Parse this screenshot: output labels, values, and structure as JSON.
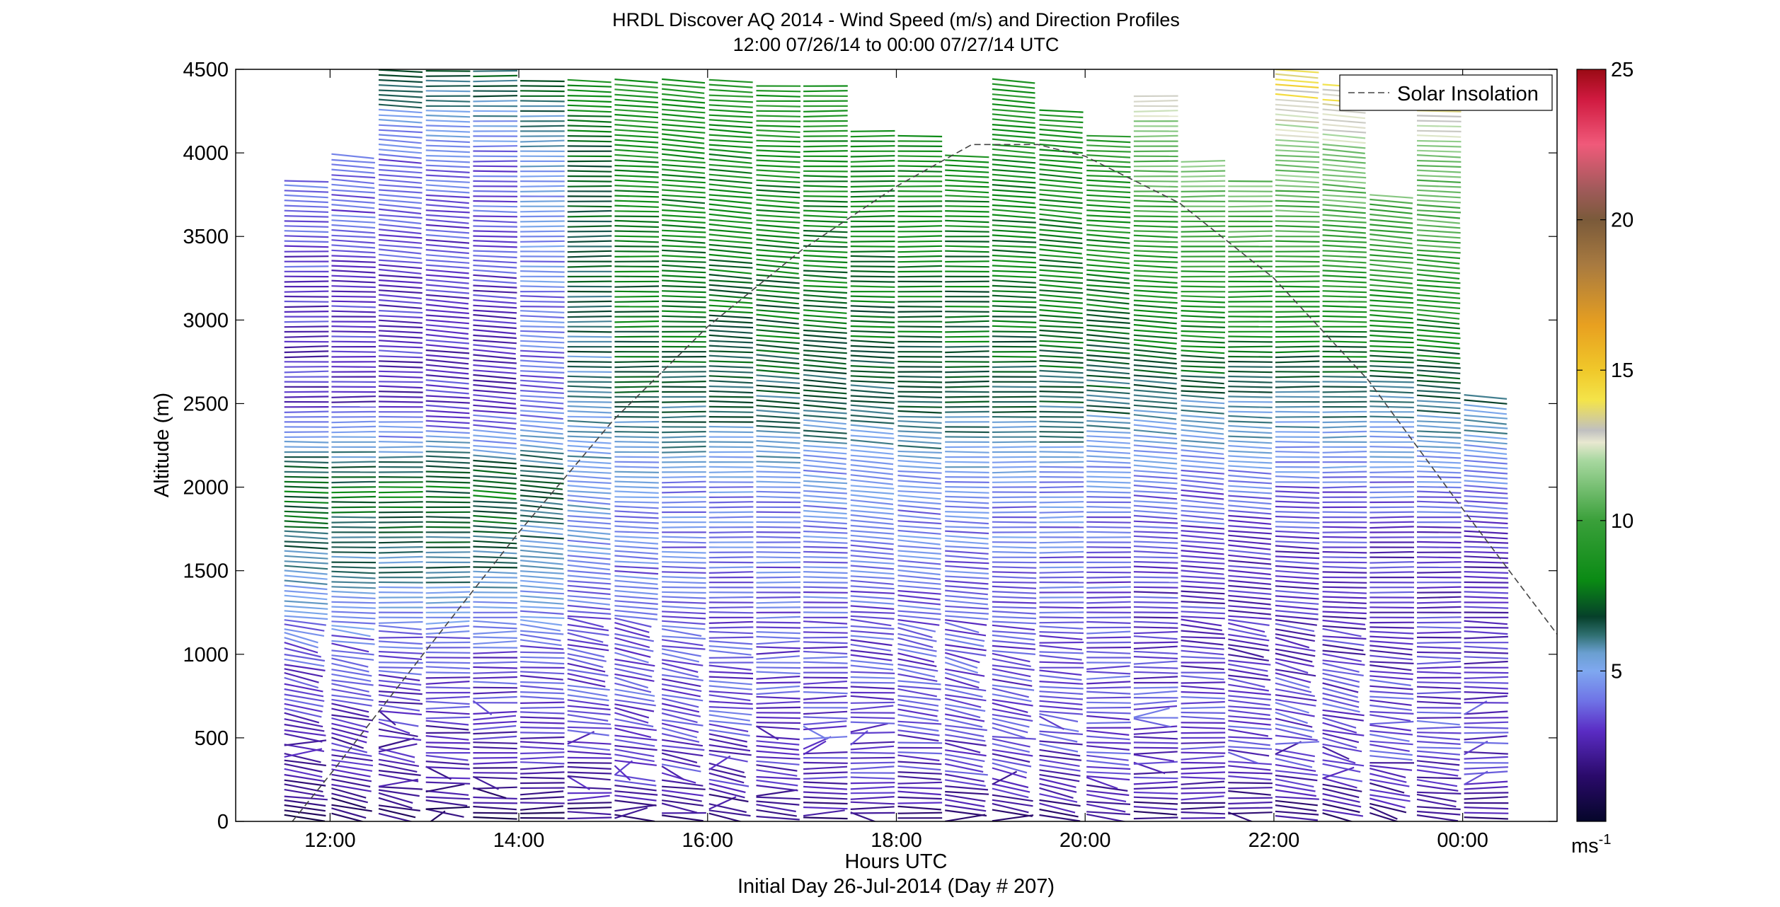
{
  "chart_data": {
    "type": "wind_barb_profile",
    "title": "HRDL Discover AQ 2014 - Wind Speed (m/s) and Direction Profiles",
    "subtitle": "12:00 07/26/14 to 00:00 07/27/14  UTC",
    "xlabel": "Hours UTC",
    "xlabel2": "Initial Day 26-Jul-2014 (Day # 207)",
    "ylabel": "Altitude (m)",
    "xlim": [
      11.0,
      25.0
    ],
    "ylim": [
      0,
      4500
    ],
    "x_ticks": [
      12,
      14,
      16,
      18,
      20,
      22,
      24
    ],
    "x_tick_labels": [
      "12:00",
      "14:00",
      "16:00",
      "18:00",
      "20:00",
      "22:00",
      "00:00"
    ],
    "y_ticks": [
      0,
      500,
      1000,
      1500,
      2000,
      2500,
      3000,
      3500,
      4000,
      4500
    ],
    "y_tick_labels": [
      "0",
      "500",
      "1000",
      "1500",
      "2000",
      "2500",
      "3000",
      "3500",
      "4000",
      "4500"
    ],
    "legend": {
      "position": "top-right",
      "entries": [
        "Solar Insolation"
      ]
    },
    "colorbar": {
      "range": [
        0,
        25
      ],
      "tick_values": [
        5,
        10,
        15,
        20,
        25
      ],
      "tick_labels": [
        "5",
        "10",
        "15",
        "20",
        "25"
      ],
      "unit_label": "ms",
      "unit_exponent": "-1",
      "stops": [
        {
          "v": 0,
          "c": "#05062a"
        },
        {
          "v": 1.5,
          "c": "#2a0a6a"
        },
        {
          "v": 3,
          "c": "#5a2cc4"
        },
        {
          "v": 4,
          "c": "#6f73e6"
        },
        {
          "v": 5,
          "c": "#7fa8f0"
        },
        {
          "v": 5.6,
          "c": "#6a9fd0"
        },
        {
          "v": 6.2,
          "c": "#2f6f70"
        },
        {
          "v": 6.8,
          "c": "#06402a"
        },
        {
          "v": 8,
          "c": "#0a8a14"
        },
        {
          "v": 10,
          "c": "#3aa03a"
        },
        {
          "v": 12,
          "c": "#a8d8a0"
        },
        {
          "v": 12.6,
          "c": "#e8e8d0"
        },
        {
          "v": 13,
          "c": "#c0c0c0"
        },
        {
          "v": 14,
          "c": "#f4e44a"
        },
        {
          "v": 15,
          "c": "#f0c82a"
        },
        {
          "v": 16.5,
          "c": "#e8a020"
        },
        {
          "v": 18.5,
          "c": "#a87a40"
        },
        {
          "v": 20,
          "c": "#7a5a3a"
        },
        {
          "v": 21,
          "c": "#a05a5a"
        },
        {
          "v": 22.5,
          "c": "#f05a7a"
        },
        {
          "v": 24,
          "c": "#d01a40"
        },
        {
          "v": 25,
          "c": "#9a0a14"
        }
      ]
    },
    "solar_insolation": {
      "x": [
        11.6,
        12.0,
        13.0,
        14.0,
        15.0,
        16.0,
        17.0,
        18.0,
        18.8,
        19.5,
        20.0,
        21.0,
        22.0,
        23.0,
        24.0,
        25.0
      ],
      "y": [
        0,
        280,
        1010,
        1730,
        2400,
        2960,
        3420,
        3800,
        4050,
        4050,
        3980,
        3700,
        3250,
        2640,
        1870,
        1120
      ]
    },
    "profile_times": [
      11.75,
      12.25,
      12.75,
      13.25,
      13.75,
      14.25,
      14.75,
      15.25,
      15.75,
      16.25,
      16.75,
      17.25,
      17.75,
      18.25,
      18.75,
      19.25,
      19.75,
      20.25,
      20.75,
      21.25,
      21.75,
      22.25,
      22.75,
      23.25,
      23.75,
      24.25
    ],
    "profile_tops_m": [
      3850,
      4000,
      4500,
      4500,
      4500,
      4450,
      4450,
      4450,
      4450,
      4450,
      4400,
      4400,
      4150,
      4100,
      4000,
      4450,
      4250,
      4100,
      4350,
      3950,
      3850,
      4500,
      4400,
      3750,
      4450,
      2550
    ],
    "level_spacing_m": 30,
    "wind_speed_by_altitude_m_s": {
      "altitude_m": [
        0,
        300,
        600,
        1000,
        1500,
        2000,
        2500,
        3000,
        3500,
        4000,
        4500
      ],
      "early_12_14": [
        1.5,
        2.5,
        3.0,
        3.5,
        6.0,
        7.5,
        3.0,
        3.0,
        3.5,
        4.0,
        7.0
      ],
      "midday_14_20": [
        2.0,
        3.0,
        3.5,
        3.5,
        4.0,
        4.5,
        6.5,
        7.5,
        8.0,
        8.5,
        9.0
      ],
      "evening_20_24": [
        2.0,
        3.0,
        3.5,
        3.0,
        3.0,
        4.0,
        6.0,
        8.5,
        10.0,
        11.5,
        14.5
      ]
    }
  }
}
